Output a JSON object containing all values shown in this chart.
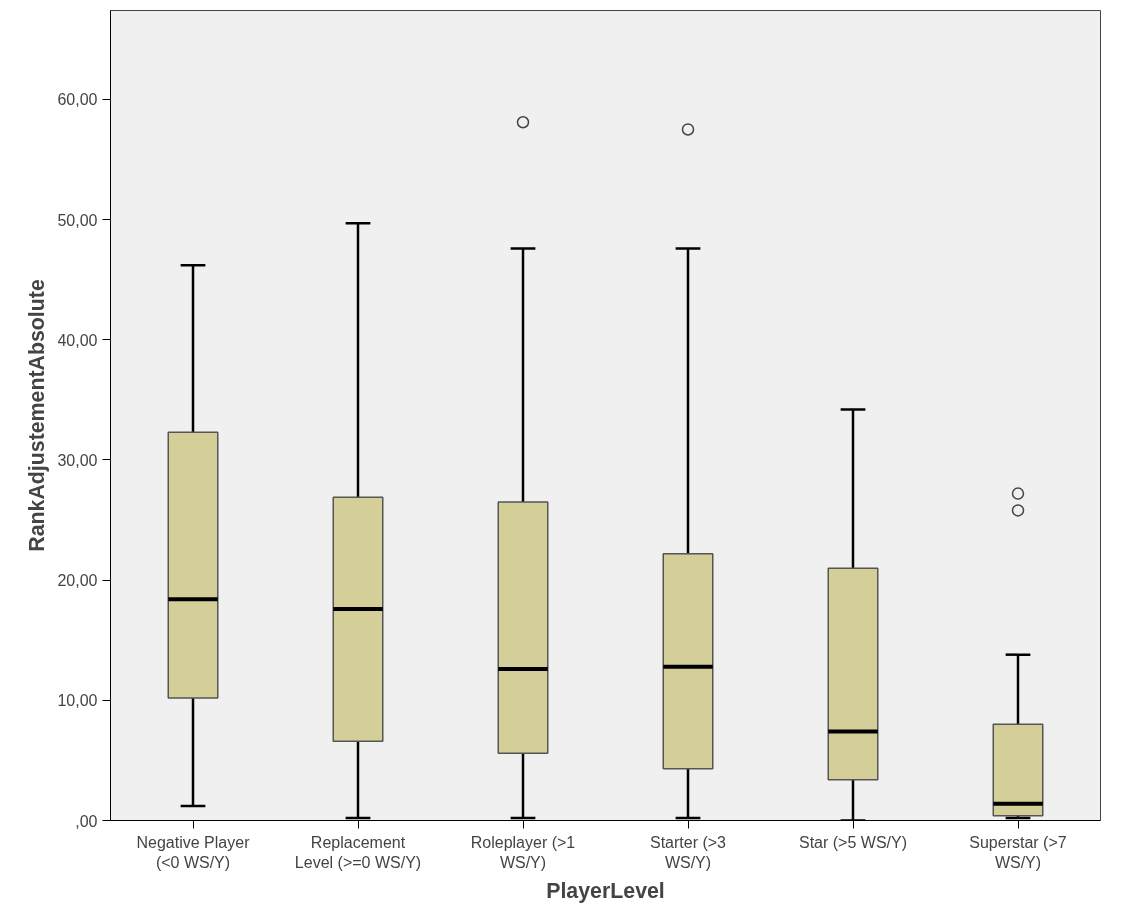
{
  "chart_data": {
    "type": "box",
    "xlabel": "PlayerLevel",
    "ylabel": "RankAdjustementAbsolute",
    "categories": [
      "Negative Player (<0 WS/Y)",
      "Replacement Level (>=0 WS/Y)",
      "Roleplayer (>1 WS/Y)",
      "Starter (>3 WS/Y)",
      "Star (>5 WS/Y)",
      "Superstar (>7 WS/Y)"
    ],
    "boxes": [
      {
        "low": 1.2,
        "q1": 10.2,
        "median": 18.4,
        "q3": 32.3,
        "high": 46.2
      },
      {
        "low": 0.2,
        "q1": 6.6,
        "median": 17.6,
        "q3": 26.9,
        "high": 49.7
      },
      {
        "low": 0.2,
        "q1": 5.6,
        "median": 12.6,
        "q3": 26.5,
        "high": 47.6,
        "outliers": [
          58.1
        ]
      },
      {
        "low": 0.2,
        "q1": 4.3,
        "median": 12.8,
        "q3": 22.2,
        "high": 47.6,
        "outliers": [
          57.5
        ]
      },
      {
        "low": 0.0,
        "q1": 3.4,
        "median": 7.4,
        "q3": 21.0,
        "high": 34.2
      },
      {
        "low": 0.2,
        "q1": 0.4,
        "median": 1.4,
        "q3": 8.0,
        "high": 13.8,
        "outliers": [
          27.2,
          25.8
        ]
      }
    ],
    "color": "#d4cf98",
    "ylim": [
      0,
      67.4
    ],
    "yticks": [
      {
        "value": 0,
        "label": ",00"
      },
      {
        "value": 10,
        "label": "10,00"
      },
      {
        "value": 20,
        "label": "20,00"
      },
      {
        "value": 30,
        "label": "30,00"
      },
      {
        "value": 40,
        "label": "40,00"
      },
      {
        "value": 50,
        "label": "50,00"
      },
      {
        "value": 60,
        "label": "60,00"
      }
    ],
    "grid": false,
    "marker": "circle"
  }
}
